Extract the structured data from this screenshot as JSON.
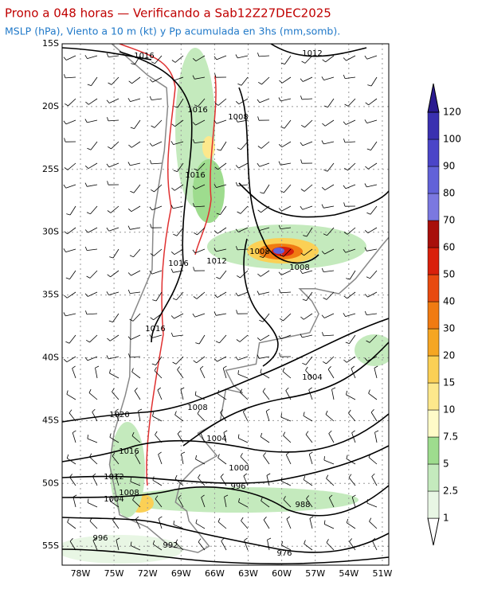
{
  "header": {
    "title": "Prono a 048 horas — Verificando a Sab12Z27DEC2025",
    "subtitle": "MSLP (hPa), Viento a 10 m (kt) y Pp acumulada en 3hs (mm,somb)."
  },
  "latitude_labels": [
    "15S",
    "20S",
    "25S",
    "30S",
    "35S",
    "40S",
    "45S",
    "50S",
    "55S"
  ],
  "longitude_labels": [
    "78W",
    "75W",
    "72W",
    "69W",
    "66W",
    "63W",
    "60W",
    "57W",
    "54W",
    "51W"
  ],
  "isobar_labels": [
    "1016",
    "1012",
    "1016",
    "1008",
    "1016",
    "1008",
    "1016",
    "1012",
    "1008",
    "1016",
    "1004",
    "1020",
    "1008",
    "1004",
    "1016",
    "1000",
    "1012",
    "996",
    "1008",
    "1004",
    "988",
    "996",
    "992",
    "976"
  ],
  "colorbar": {
    "levels": [
      1,
      2.5,
      5,
      7.5,
      10,
      15,
      20,
      30,
      40,
      50,
      60,
      70,
      80,
      90,
      100,
      120
    ],
    "colors": [
      "#ffffff",
      "#e8f6e4",
      "#c4eabd",
      "#9edc8e",
      "#fffbc8",
      "#fde88c",
      "#fbd055",
      "#f5a623",
      "#f07b12",
      "#e84a10",
      "#d9200b",
      "#a80f0b",
      "#7b78e0",
      "#6262d8",
      "#4b45c8",
      "#3a30b0",
      "#2a1a90"
    ]
  }
}
